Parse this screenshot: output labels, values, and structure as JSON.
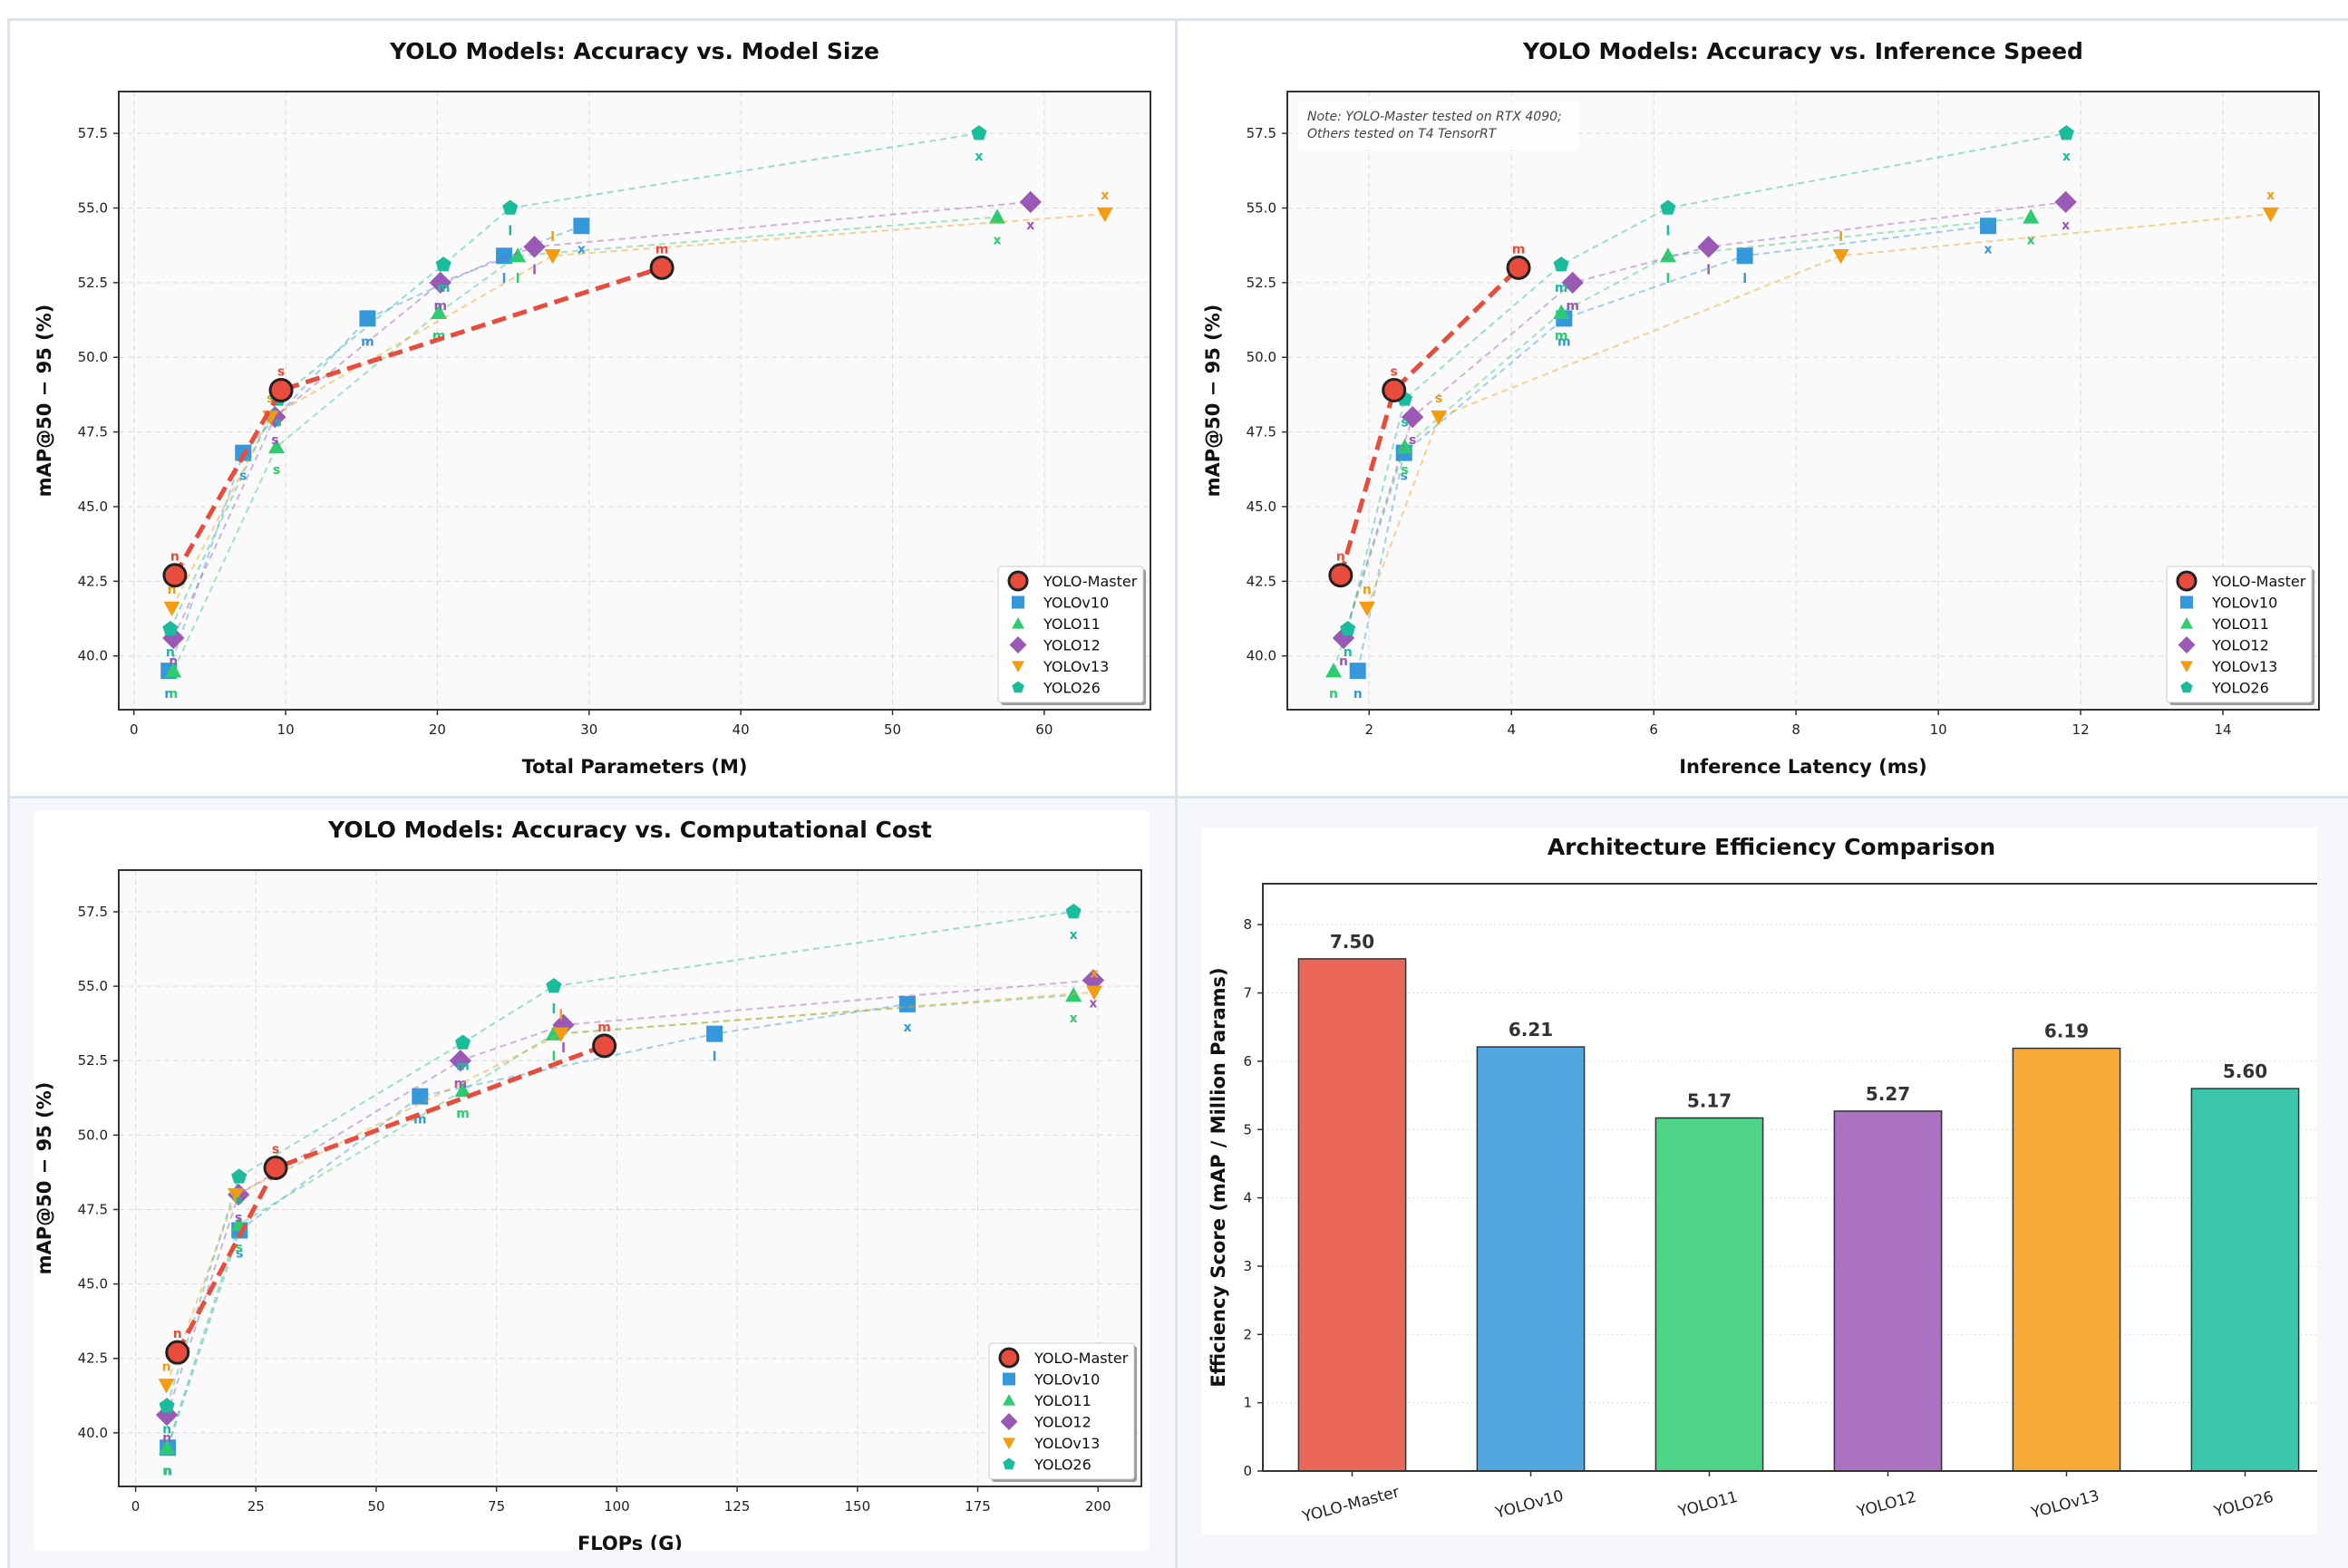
{
  "series_meta": [
    {
      "name": "YOLO-Master",
      "color": "#e74c3c",
      "marker": "circle",
      "highlight": true
    },
    {
      "name": "YOLOv10",
      "color": "#3498db",
      "marker": "square",
      "highlight": false
    },
    {
      "name": "YOLO11",
      "color": "#2ecc71",
      "marker": "triangle-up",
      "highlight": false
    },
    {
      "name": "YOLO12",
      "color": "#9b59b6",
      "marker": "diamond",
      "highlight": false
    },
    {
      "name": "YOLOv13",
      "color": "#f39c12",
      "marker": "triangle-down",
      "highlight": false
    },
    {
      "name": "YOLO26",
      "color": "#1abc9c",
      "marker": "pentagon",
      "highlight": false
    }
  ],
  "chart_data": [
    {
      "id": "size",
      "type": "line",
      "title": "YOLO Models: Accuracy vs. Model Size",
      "xlabel": "Total Parameters (M)",
      "ylabel": "mAP@50 − 95 (%)",
      "xlim": [
        -1,
        67
      ],
      "ylim": [
        38.2,
        58.9
      ],
      "xticks": [
        0,
        10,
        20,
        30,
        40,
        50,
        60
      ],
      "yticks": [
        "40.0",
        "42.5",
        "45.0",
        "47.5",
        "50.0",
        "52.5",
        "55.0",
        "57.5"
      ],
      "grid": true,
      "legend": "lower-right",
      "series": [
        {
          "name": "YOLO-Master",
          "points": [
            {
              "s": "n",
              "x": 2.7,
              "y": 42.7
            },
            {
              "s": "s",
              "x": 9.7,
              "y": 48.9
            },
            {
              "s": "m",
              "x": 34.8,
              "y": 53.0
            }
          ]
        },
        {
          "name": "YOLOv10",
          "points": [
            {
              "s": "n",
              "x": 2.3,
              "y": 39.5
            },
            {
              "s": "s",
              "x": 7.2,
              "y": 46.8
            },
            {
              "s": "m",
              "x": 15.4,
              "y": 51.3
            },
            {
              "s": "l",
              "x": 24.4,
              "y": 53.4
            },
            {
              "s": "x",
              "x": 29.5,
              "y": 54.4
            }
          ]
        },
        {
          "name": "YOLO11",
          "points": [
            {
              "s": "n",
              "x": 2.6,
              "y": 39.5
            },
            {
              "s": "s",
              "x": 9.4,
              "y": 47.0
            },
            {
              "s": "m",
              "x": 20.1,
              "y": 51.5
            },
            {
              "s": "l",
              "x": 25.3,
              "y": 53.4
            },
            {
              "s": "x",
              "x": 56.9,
              "y": 54.7
            }
          ]
        },
        {
          "name": "YOLO12",
          "points": [
            {
              "s": "n",
              "x": 2.6,
              "y": 40.6
            },
            {
              "s": "s",
              "x": 9.3,
              "y": 48.0
            },
            {
              "s": "m",
              "x": 20.2,
              "y": 52.5
            },
            {
              "s": "l",
              "x": 26.4,
              "y": 53.7
            },
            {
              "s": "x",
              "x": 59.1,
              "y": 55.2
            }
          ]
        },
        {
          "name": "YOLOv13",
          "points": [
            {
              "s": "n",
              "x": 2.5,
              "y": 41.6
            },
            {
              "s": "s",
              "x": 9.0,
              "y": 48.0
            },
            {
              "s": "l",
              "x": 27.6,
              "y": 53.4
            },
            {
              "s": "x",
              "x": 64.0,
              "y": 54.8
            }
          ]
        },
        {
          "name": "YOLO26",
          "points": [
            {
              "s": "n",
              "x": 2.4,
              "y": 40.9
            },
            {
              "s": "s",
              "x": 9.5,
              "y": 48.6
            },
            {
              "s": "m",
              "x": 20.4,
              "y": 53.1
            },
            {
              "s": "l",
              "x": 24.8,
              "y": 55.0
            },
            {
              "s": "x",
              "x": 55.7,
              "y": 57.5
            }
          ]
        }
      ]
    },
    {
      "id": "speed",
      "type": "line",
      "title": "YOLO Models: Accuracy vs. Inference Speed",
      "xlabel": "Inference Latency (ms)",
      "ylabel": "mAP@50 − 95 (%)",
      "xlim": [
        0.85,
        15.35
      ],
      "ylim": [
        38.2,
        58.9
      ],
      "xticks": [
        2,
        4,
        6,
        8,
        10,
        12,
        14
      ],
      "yticks": [
        "40.0",
        "42.5",
        "45.0",
        "47.5",
        "50.0",
        "52.5",
        "55.0",
        "57.5"
      ],
      "grid": true,
      "legend": "lower-right",
      "note": [
        "Note: YOLO-Master tested on RTX 4090;",
        "Others tested on T4 TensorRT"
      ],
      "series": [
        {
          "name": "YOLO-Master",
          "points": [
            {
              "s": "n",
              "x": 1.6,
              "y": 42.7
            },
            {
              "s": "s",
              "x": 2.35,
              "y": 48.9
            },
            {
              "s": "m",
              "x": 4.1,
              "y": 53.0
            }
          ]
        },
        {
          "name": "YOLOv10",
          "points": [
            {
              "s": "n",
              "x": 1.84,
              "y": 39.5
            },
            {
              "s": "s",
              "x": 2.49,
              "y": 46.8
            },
            {
              "s": "m",
              "x": 4.74,
              "y": 51.3
            },
            {
              "s": "l",
              "x": 7.28,
              "y": 53.4
            },
            {
              "s": "x",
              "x": 10.7,
              "y": 54.4
            }
          ]
        },
        {
          "name": "YOLO11",
          "points": [
            {
              "s": "n",
              "x": 1.5,
              "y": 39.5
            },
            {
              "s": "s",
              "x": 2.5,
              "y": 47.0
            },
            {
              "s": "m",
              "x": 4.7,
              "y": 51.5
            },
            {
              "s": "l",
              "x": 6.2,
              "y": 53.4
            },
            {
              "s": "x",
              "x": 11.3,
              "y": 54.7
            }
          ]
        },
        {
          "name": "YOLO12",
          "points": [
            {
              "s": "n",
              "x": 1.64,
              "y": 40.6
            },
            {
              "s": "s",
              "x": 2.61,
              "y": 48.0
            },
            {
              "s": "m",
              "x": 4.86,
              "y": 52.5
            },
            {
              "s": "l",
              "x": 6.77,
              "y": 53.7
            },
            {
              "s": "x",
              "x": 11.79,
              "y": 55.2
            }
          ]
        },
        {
          "name": "YOLOv13",
          "points": [
            {
              "s": "n",
              "x": 1.97,
              "y": 41.6
            },
            {
              "s": "s",
              "x": 2.98,
              "y": 48.0
            },
            {
              "s": "l",
              "x": 8.63,
              "y": 53.4
            },
            {
              "s": "x",
              "x": 14.67,
              "y": 54.8
            }
          ]
        },
        {
          "name": "YOLO26",
          "points": [
            {
              "s": "n",
              "x": 1.7,
              "y": 40.9
            },
            {
              "s": "s",
              "x": 2.5,
              "y": 48.6
            },
            {
              "s": "m",
              "x": 4.7,
              "y": 53.1
            },
            {
              "s": "l",
              "x": 6.2,
              "y": 55.0
            },
            {
              "s": "x",
              "x": 11.8,
              "y": 57.5
            }
          ]
        }
      ]
    },
    {
      "id": "flops",
      "type": "line",
      "title": "YOLO Models: Accuracy vs. Computational Cost",
      "xlabel": "FLOPs (G)",
      "ylabel": "mAP@50 − 95 (%)",
      "xlim": [
        -3.5,
        209
      ],
      "ylim": [
        38.2,
        58.9
      ],
      "xticks": [
        0,
        25,
        50,
        75,
        100,
        125,
        150,
        175,
        200
      ],
      "yticks": [
        "40.0",
        "42.5",
        "45.0",
        "47.5",
        "50.0",
        "52.5",
        "55.0",
        "57.5"
      ],
      "grid": true,
      "legend": "lower-right",
      "series": [
        {
          "name": "YOLO-Master",
          "points": [
            {
              "s": "n",
              "x": 8.7,
              "y": 42.7
            },
            {
              "s": "s",
              "x": 29.1,
              "y": 48.9
            },
            {
              "s": "m",
              "x": 97.4,
              "y": 53.0
            }
          ]
        },
        {
          "name": "YOLOv10",
          "points": [
            {
              "s": "n",
              "x": 6.7,
              "y": 39.5
            },
            {
              "s": "s",
              "x": 21.6,
              "y": 46.8
            },
            {
              "s": "m",
              "x": 59.1,
              "y": 51.3
            },
            {
              "s": "l",
              "x": 120.3,
              "y": 53.4
            },
            {
              "s": "x",
              "x": 160.4,
              "y": 54.4
            }
          ]
        },
        {
          "name": "YOLO11",
          "points": [
            {
              "s": "n",
              "x": 6.5,
              "y": 39.5
            },
            {
              "s": "s",
              "x": 21.5,
              "y": 47.0
            },
            {
              "s": "m",
              "x": 68.0,
              "y": 51.5
            },
            {
              "s": "l",
              "x": 86.9,
              "y": 53.4
            },
            {
              "s": "x",
              "x": 194.9,
              "y": 54.7
            }
          ]
        },
        {
          "name": "YOLO12",
          "points": [
            {
              "s": "n",
              "x": 6.5,
              "y": 40.6
            },
            {
              "s": "s",
              "x": 21.4,
              "y": 48.0
            },
            {
              "s": "m",
              "x": 67.5,
              "y": 52.5
            },
            {
              "s": "l",
              "x": 88.9,
              "y": 53.7
            },
            {
              "s": "x",
              "x": 199.0,
              "y": 55.2
            }
          ]
        },
        {
          "name": "YOLOv13",
          "points": [
            {
              "s": "n",
              "x": 6.4,
              "y": 41.6
            },
            {
              "s": "s",
              "x": 20.8,
              "y": 48.0
            },
            {
              "s": "l",
              "x": 88.4,
              "y": 53.4
            },
            {
              "s": "x",
              "x": 199.2,
              "y": 54.8
            }
          ]
        },
        {
          "name": "YOLO26",
          "points": [
            {
              "s": "n",
              "x": 6.5,
              "y": 40.9
            },
            {
              "s": "s",
              "x": 21.5,
              "y": 48.6
            },
            {
              "s": "m",
              "x": 68.0,
              "y": 53.1
            },
            {
              "s": "l",
              "x": 86.9,
              "y": 55.0
            },
            {
              "s": "x",
              "x": 194.9,
              "y": 57.5
            }
          ]
        }
      ]
    },
    {
      "id": "efficiency",
      "type": "bar",
      "title": "Architecture Efficiency Comparison",
      "xlabel": "",
      "ylabel": "Efficiency Score (mAP / Million Params)",
      "categories": [
        "YOLO-Master",
        "YOLOv10",
        "YOLO11",
        "YOLO12",
        "YOLOv13",
        "YOLO26"
      ],
      "values": [
        7.5,
        6.21,
        5.17,
        5.27,
        6.19,
        5.6
      ],
      "value_labels": [
        "7.50",
        "6.21",
        "5.17",
        "5.27",
        "6.19",
        "5.60"
      ],
      "colors": [
        "#e74c3c",
        "#3498db",
        "#2ecc71",
        "#9b59b6",
        "#f39c12",
        "#1abc9c"
      ],
      "ylim": [
        0,
        8.6
      ],
      "yticks": [
        0,
        1,
        2,
        3,
        4,
        5,
        6,
        7,
        8
      ],
      "grid": true
    }
  ]
}
